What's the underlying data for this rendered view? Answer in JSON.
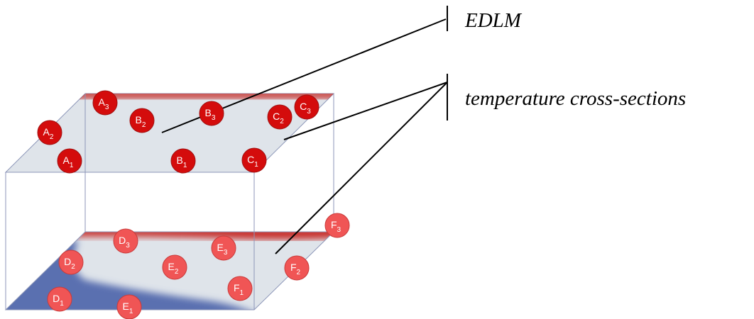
{
  "labels": {
    "edlm": "EDLM",
    "temperature": "temperature cross-sections"
  },
  "nodes": [
    {
      "letter": "A",
      "index": "3"
    },
    {
      "letter": "B",
      "index": "2"
    },
    {
      "letter": "B",
      "index": "3"
    },
    {
      "letter": "C",
      "index": "2"
    },
    {
      "letter": "C",
      "index": "3"
    },
    {
      "letter": "A",
      "index": "2"
    },
    {
      "letter": "A",
      "index": "1"
    },
    {
      "letter": "B",
      "index": "1"
    },
    {
      "letter": "C",
      "index": "1"
    },
    {
      "letter": "F",
      "index": "3"
    },
    {
      "letter": "D",
      "index": "3"
    },
    {
      "letter": "E",
      "index": "3"
    },
    {
      "letter": "D",
      "index": "2"
    },
    {
      "letter": "E",
      "index": "2"
    },
    {
      "letter": "F",
      "index": "2"
    },
    {
      "letter": "F",
      "index": "1"
    },
    {
      "letter": "D",
      "index": "1"
    },
    {
      "letter": "E",
      "index": "1"
    }
  ]
}
